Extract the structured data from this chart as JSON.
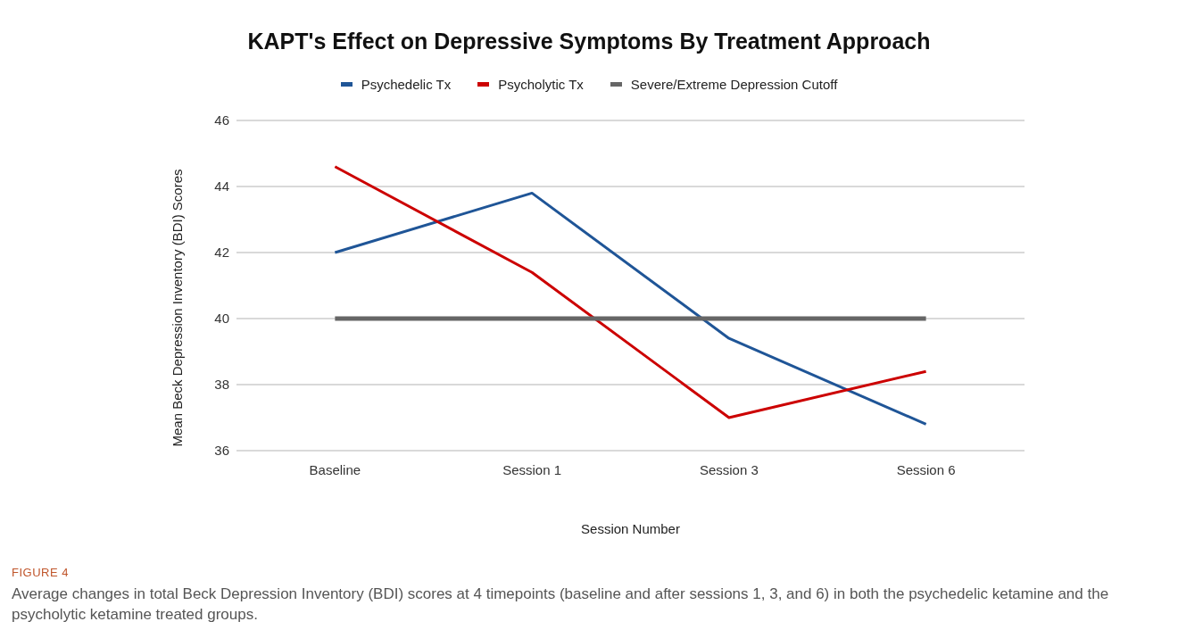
{
  "chart_data": {
    "type": "line",
    "title": "KAPT's Effect on Depressive Symptoms By Treatment Approach",
    "xlabel": "Session Number",
    "ylabel": "Mean Beck Depression Inventory (BDI) Scores",
    "categories": [
      "Baseline",
      "Session 1",
      "Session 3",
      "Session 6"
    ],
    "series": [
      {
        "name": "Psychedelic Tx",
        "color": "#1f5597",
        "values": [
          42,
          43.8,
          39.4,
          36.8
        ]
      },
      {
        "name": "Psycholytic Tx",
        "color": "#cc0000",
        "values": [
          44.6,
          41.4,
          37,
          38.4
        ]
      },
      {
        "name": "Severe/Extreme Depression Cutoff",
        "color": "#666666",
        "values": [
          40,
          40,
          40,
          40
        ]
      }
    ],
    "ylim": [
      36,
      46
    ],
    "yticks": [
      36,
      38,
      40,
      42,
      44,
      46
    ],
    "grid": "y",
    "legend": "top",
    "marker": "none",
    "line_style": "solid",
    "annotations": [
      "FIGURE 4",
      "Average changes in total Beck Depression Inventory (BDI) scores at 4 timepoints (baseline and after sessions 1, 3, and 6) in both the psychedelic ketamine and the psycholytic ketamine treated groups."
    ]
  }
}
